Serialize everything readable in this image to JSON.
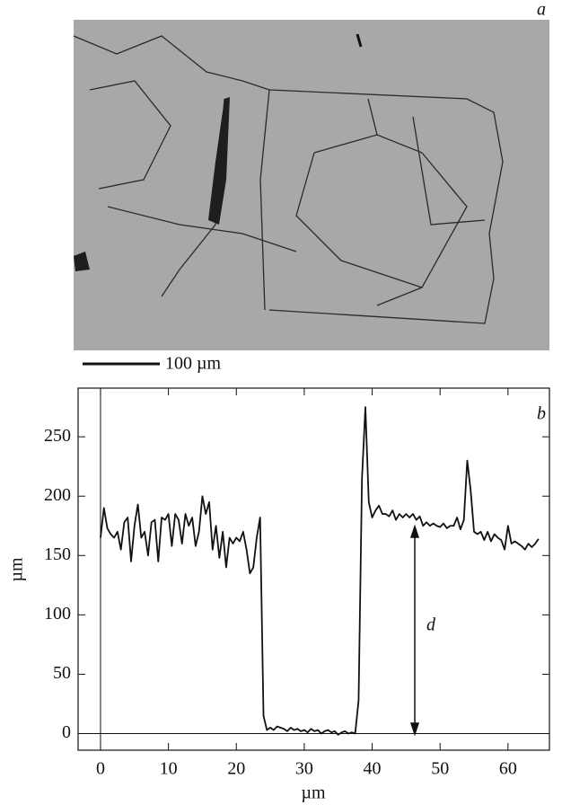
{
  "panel_a": {
    "label": "a",
    "scale_bar": "100 µm"
  },
  "chart_data": {
    "type": "line",
    "panel_label": "b",
    "annotation": "d",
    "x_label": "µm",
    "y_label": "µm",
    "xlim": [
      -3.3,
      66.1
    ],
    "ylim": [
      -14,
      291
    ],
    "xticks": [
      0,
      10,
      20,
      30,
      40,
      50,
      60
    ],
    "yticks": [
      0,
      50,
      100,
      150,
      200,
      250
    ],
    "x": [
      0,
      0.5,
      1,
      1.5,
      2,
      2.5,
      3,
      3.5,
      4,
      4.5,
      5,
      5.5,
      6,
      6.5,
      7,
      7.5,
      8,
      8.5,
      9,
      9.5,
      10,
      10.5,
      11,
      11.5,
      12,
      12.5,
      13,
      13.5,
      14,
      14.5,
      15,
      15.5,
      16,
      16.5,
      17,
      17.5,
      18,
      18.5,
      19,
      19.5,
      20,
      20.5,
      21,
      21.5,
      22,
      22.5,
      23,
      23.5,
      24,
      24.5,
      25,
      25.5,
      26,
      26.5,
      27,
      27.5,
      28,
      28.5,
      29,
      29.5,
      30,
      30.5,
      31,
      31.5,
      32,
      32.5,
      33,
      33.5,
      34,
      34.5,
      35,
      35.5,
      36,
      36.5,
      37,
      37.5,
      38,
      38.5,
      39,
      39.5,
      40,
      40.5,
      41,
      41.5,
      42,
      42.5,
      43,
      43.5,
      44,
      44.5,
      45,
      45.5,
      46,
      46.5,
      47,
      47.5,
      48,
      48.5,
      49,
      49.5,
      50,
      50.5,
      51,
      51.5,
      52,
      52.5,
      53,
      53.5,
      54,
      54.5,
      55,
      55.5,
      56,
      56.5,
      57,
      57.5,
      58,
      58.5,
      59,
      59.5,
      60,
      60.5,
      61,
      61.5,
      62,
      62.5,
      63,
      63.5,
      64,
      64.5
    ],
    "series": [
      {
        "color": "#111111",
        "values": [
          165,
          190,
          173,
          168,
          165,
          170,
          155,
          178,
          182,
          145,
          175,
          193,
          165,
          170,
          150,
          178,
          180,
          145,
          182,
          180,
          185,
          158,
          185,
          180,
          160,
          185,
          175,
          182,
          158,
          170,
          200,
          185,
          195,
          155,
          175,
          148,
          170,
          140,
          165,
          160,
          165,
          162,
          170,
          155,
          135,
          140,
          165,
          182,
          15,
          3,
          5,
          3,
          6,
          5,
          4,
          2,
          5,
          3,
          4,
          2,
          3,
          1,
          4,
          2,
          3,
          0,
          2,
          3,
          1,
          2,
          -1,
          1,
          2,
          0,
          1,
          0,
          28,
          215,
          275,
          195,
          182,
          188,
          192,
          185,
          185,
          183,
          188,
          180,
          185,
          182,
          185,
          182,
          185,
          180,
          183,
          175,
          178,
          175,
          177,
          175,
          174,
          177,
          173,
          175,
          175,
          182,
          172,
          180,
          230,
          205,
          170,
          168,
          170,
          163,
          170,
          162,
          168,
          165,
          163,
          155,
          175,
          160,
          162,
          160,
          158,
          155,
          160,
          157,
          160,
          164
        ]
      }
    ]
  }
}
